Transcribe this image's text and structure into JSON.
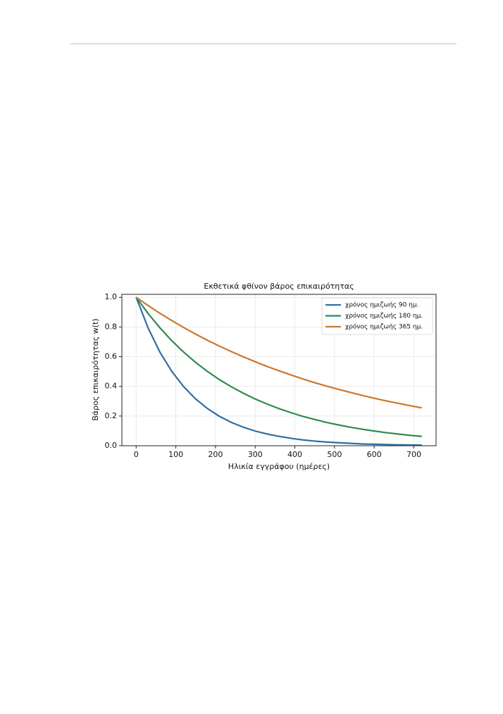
{
  "chart_data": {
    "type": "line",
    "title": "Εκθετικά φθίνον βάρος επικαιρότητας",
    "xlabel": "Ηλικία εγγράφου (ημέρες)",
    "ylabel": "Βάρος επικαιρότητας w(t)",
    "x": [
      0,
      30,
      60,
      90,
      120,
      150,
      180,
      210,
      240,
      270,
      300,
      330,
      360,
      390,
      420,
      450,
      480,
      510,
      540,
      570,
      600,
      630,
      660,
      690,
      720
    ],
    "series": [
      {
        "name": "χρόνος ημιζωής 90 ημ.",
        "color": "#2f6ea5",
        "values": [
          1,
          0.794,
          0.63,
          0.5,
          0.397,
          0.315,
          0.25,
          0.198,
          0.157,
          0.125,
          0.099,
          0.079,
          0.063,
          0.05,
          0.039,
          0.031,
          0.025,
          0.02,
          0.016,
          0.012,
          0.01,
          0.008,
          0.006,
          0.005,
          0.004
        ]
      },
      {
        "name": "χρόνος ημιζωής 180 ημ.",
        "color": "#2e8b50",
        "values": [
          1,
          0.891,
          0.794,
          0.707,
          0.63,
          0.561,
          0.5,
          0.445,
          0.397,
          0.354,
          0.315,
          0.281,
          0.25,
          0.223,
          0.198,
          0.177,
          0.157,
          0.14,
          0.125,
          0.111,
          0.099,
          0.088,
          0.079,
          0.07,
          0.063
        ]
      },
      {
        "name": "χρόνος ημιζωής 365 ημ.",
        "color": "#cc772d",
        "values": [
          1,
          0.945,
          0.892,
          0.843,
          0.796,
          0.752,
          0.71,
          0.671,
          0.634,
          0.599,
          0.566,
          0.534,
          0.505,
          0.477,
          0.45,
          0.425,
          0.402,
          0.38,
          0.359,
          0.339,
          0.32,
          0.302,
          0.286,
          0.27,
          0.255
        ]
      }
    ],
    "xlim": [
      -36,
      756
    ],
    "ylim": [
      0,
      1.02
    ],
    "xticks": [
      0,
      100,
      200,
      300,
      400,
      500,
      600,
      700
    ],
    "yticks": [
      {
        "value": 0,
        "label": "0.0"
      },
      0.2,
      0.4,
      0.6,
      0.8,
      {
        "value": 1,
        "label": "1.0"
      }
    ],
    "grid": true,
    "legend": "upper-right"
  }
}
